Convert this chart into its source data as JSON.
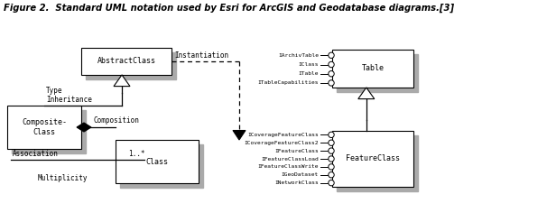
{
  "title": "Figure 2.  Standard UML notation used by Esri for ArcGIS and Geodatabase diagrams.[3]",
  "bg_color": "#ffffff",
  "shadow_color": "#aaaaaa",
  "box_color": "#ffffff",
  "box_edge": "#000000",
  "line_color": "#000000",
  "left_panel": {
    "abstract_label": "AbstractClass",
    "composite_label": "Composite-\nClass",
    "class_label": "Class",
    "instantiation_label": "Instantiation",
    "type_inheritance_label": "Type\nInheritance",
    "composition_label": "Composition",
    "association_label": "Association",
    "multiplicity_label": "Multiplicity",
    "multiplicity_value": "1..*"
  },
  "right_panel": {
    "table_label": "Table",
    "feature_label": "FeatureClass",
    "table_interfaces": [
      "IArchivTable",
      "IClass",
      "ITable",
      "ITableCapabilities"
    ],
    "feature_interfaces": [
      "ICoverageFeatureClass",
      "ICoverageFeatureClass2",
      "IFeatureClass",
      "IFeatureClassLoad",
      "IFeatureClassWrite",
      "IGeoDataset",
      "INetworkClass"
    ]
  }
}
